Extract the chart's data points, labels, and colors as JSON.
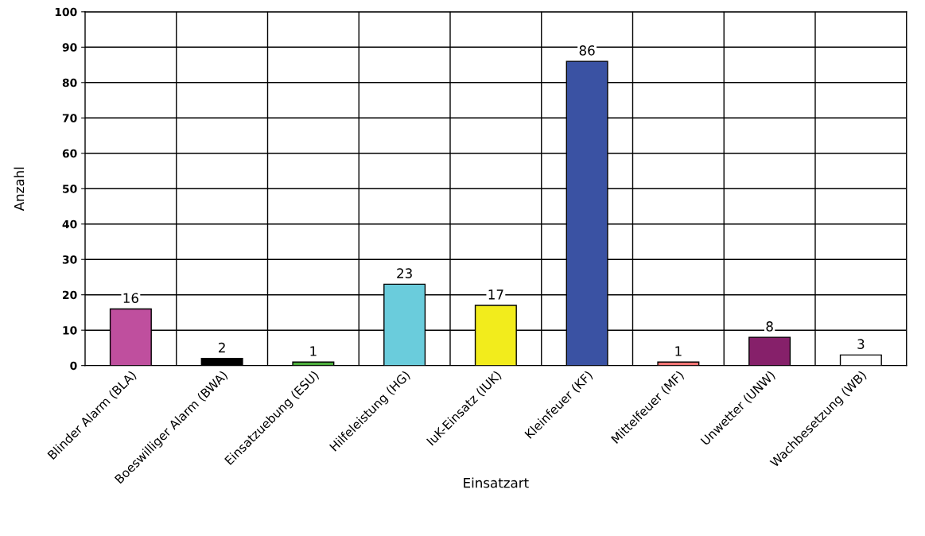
{
  "chart_data": {
    "type": "bar",
    "xlabel": "Einsatzart",
    "ylabel": "Anzahl",
    "categories": [
      "Blinder Alarm (BLA)",
      "Boeswilliger Alarm (BWA)",
      "Einsatzuebung (ESU)",
      "Hilfeleistung (HG)",
      "IuK-Einsatz (IUK)",
      "Kleinfeuer (KF)",
      "Mittelfeuer (MF)",
      "Unwetter (UNW)",
      "Wachbesetzung (WB)"
    ],
    "values": [
      16,
      2,
      1,
      23,
      17,
      86,
      1,
      8,
      3
    ],
    "colors": [
      "#bf4f9e",
      "#000000",
      "#4cae3c",
      "#6accdc",
      "#f2ec1c",
      "#3a52a3",
      "#f27474",
      "#86206a",
      "#ffffff"
    ],
    "ylim": [
      0,
      100
    ],
    "yticks": [
      0,
      10,
      20,
      30,
      40,
      50,
      60,
      70,
      80,
      90,
      100
    ],
    "grid": true,
    "data_labels": true
  }
}
